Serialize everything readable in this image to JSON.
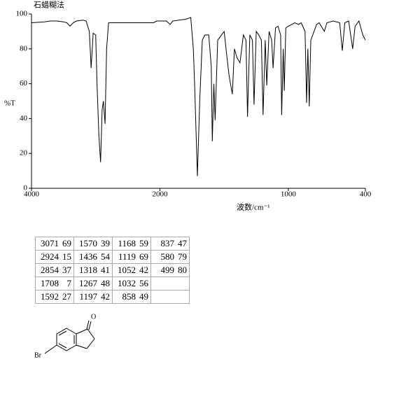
{
  "chart_data": {
    "type": "line",
    "title": "石蜡糊法",
    "ylabel": "%T",
    "xlabel": "波数/cm⁻¹",
    "xlim": [
      4000,
      400
    ],
    "xticks": [
      4000,
      2000,
      1000,
      400
    ],
    "x_scale": {
      "break": 2000,
      "compression": 2
    },
    "ylim": [
      0,
      100
    ],
    "yticks": [
      0,
      20,
      40,
      60,
      80,
      100
    ],
    "grid": false,
    "color": "#000000",
    "x": [
      4000,
      3800,
      3700,
      3600,
      3500,
      3450,
      3400,
      3350,
      3300,
      3200,
      3150,
      3100,
      3071,
      3040,
      3000,
      2980,
      2950,
      2924,
      2900,
      2880,
      2854,
      2830,
      2800,
      2700,
      2400,
      2100,
      2050,
      1950,
      1920,
      1900,
      1800,
      1760,
      1740,
      1730,
      1708,
      1690,
      1670,
      1650,
      1620,
      1600,
      1592,
      1580,
      1570,
      1550,
      1500,
      1470,
      1460,
      1436,
      1420,
      1400,
      1377,
      1350,
      1330,
      1318,
      1300,
      1280,
      1267,
      1250,
      1230,
      1210,
      1197,
      1180,
      1168,
      1150,
      1130,
      1119,
      1100,
      1080,
      1060,
      1052,
      1040,
      1032,
      1020,
      1000,
      950,
      920,
      900,
      870,
      858,
      848,
      837,
      825,
      800,
      780,
      760,
      720,
      700,
      650,
      600,
      580,
      560,
      530,
      499,
      480,
      450,
      420,
      400
    ],
    "values": [
      95,
      95.5,
      96,
      96,
      95.5,
      95,
      93,
      95,
      96,
      96.5,
      96,
      90,
      69,
      89,
      88,
      60,
      30,
      15,
      45,
      50,
      37,
      80,
      95,
      95,
      95,
      95,
      96,
      96,
      94,
      96,
      97,
      98,
      80,
      60,
      7,
      50,
      85,
      88,
      88,
      70,
      27,
      60,
      39,
      85,
      90,
      70,
      64,
      54,
      80,
      75,
      72,
      88,
      85,
      41,
      88,
      85,
      48,
      90,
      88,
      85,
      42,
      85,
      59,
      90,
      85,
      69,
      92,
      93,
      88,
      42,
      80,
      56,
      92,
      93,
      95,
      94,
      95,
      90,
      49,
      80,
      47,
      85,
      90,
      94,
      95,
      90,
      95,
      96,
      95,
      79,
      95,
      96,
      80,
      93,
      96,
      88,
      85
    ]
  },
  "peak_table": {
    "rows": [
      [
        [
          3071,
          69
        ],
        [
          1570,
          39
        ],
        [
          1168,
          59
        ],
        [
          837,
          47
        ]
      ],
      [
        [
          2924,
          15
        ],
        [
          1436,
          54
        ],
        [
          1119,
          69
        ],
        [
          580,
          79
        ]
      ],
      [
        [
          2854,
          37
        ],
        [
          1318,
          41
        ],
        [
          1052,
          42
        ],
        [
          499,
          80
        ]
      ],
      [
        [
          1708,
          7
        ],
        [
          1267,
          48
        ],
        [
          1032,
          56
        ]
      ],
      [
        [
          1592,
          27
        ],
        [
          1197,
          42
        ],
        [
          858,
          49
        ]
      ]
    ]
  },
  "structure": {
    "atoms": [
      "O",
      "Br"
    ]
  }
}
